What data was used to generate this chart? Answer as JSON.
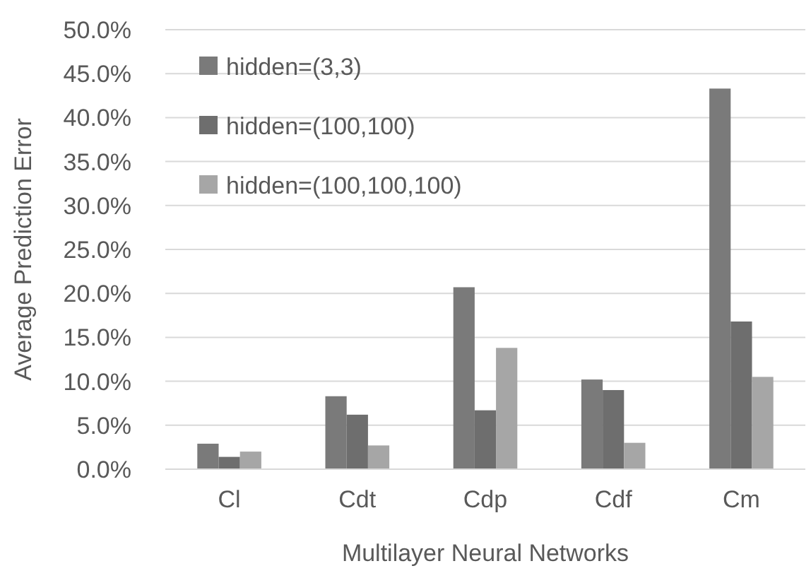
{
  "chart_data": {
    "type": "bar",
    "xlabel": "Multilayer Neural Networks",
    "ylabel": "Average Prediction Error",
    "categories": [
      "Cl",
      "Cdt",
      "Cdp",
      "Cdf",
      "Cm"
    ],
    "series": [
      {
        "name": "hidden=(3,3)",
        "color": "#7a7a7a",
        "values": [
          2.9,
          8.3,
          20.7,
          10.2,
          43.3
        ]
      },
      {
        "name": "hidden=(100,100)",
        "color": "#6e6e6e",
        "values": [
          1.4,
          6.2,
          6.7,
          9.0,
          16.8
        ]
      },
      {
        "name": "hidden=(100,100,100)",
        "color": "#a6a6a6",
        "values": [
          2.0,
          2.7,
          13.8,
          3.0,
          10.5
        ]
      }
    ],
    "ylim": [
      0,
      50
    ],
    "yticks": [
      {
        "value": 0,
        "label": "0.0%"
      },
      {
        "value": 5,
        "label": "5.0%"
      },
      {
        "value": 10,
        "label": "10.0%"
      },
      {
        "value": 15,
        "label": "15.0%"
      },
      {
        "value": 20,
        "label": "20.0%"
      },
      {
        "value": 25,
        "label": "25.0%"
      },
      {
        "value": 30,
        "label": "30.0%"
      },
      {
        "value": 35,
        "label": "35.0%"
      },
      {
        "value": 40,
        "label": "40.0%"
      },
      {
        "value": 45,
        "label": "45.0%"
      },
      {
        "value": 50,
        "label": "50.0%"
      }
    ],
    "grid": "y",
    "legend": "top left"
  }
}
